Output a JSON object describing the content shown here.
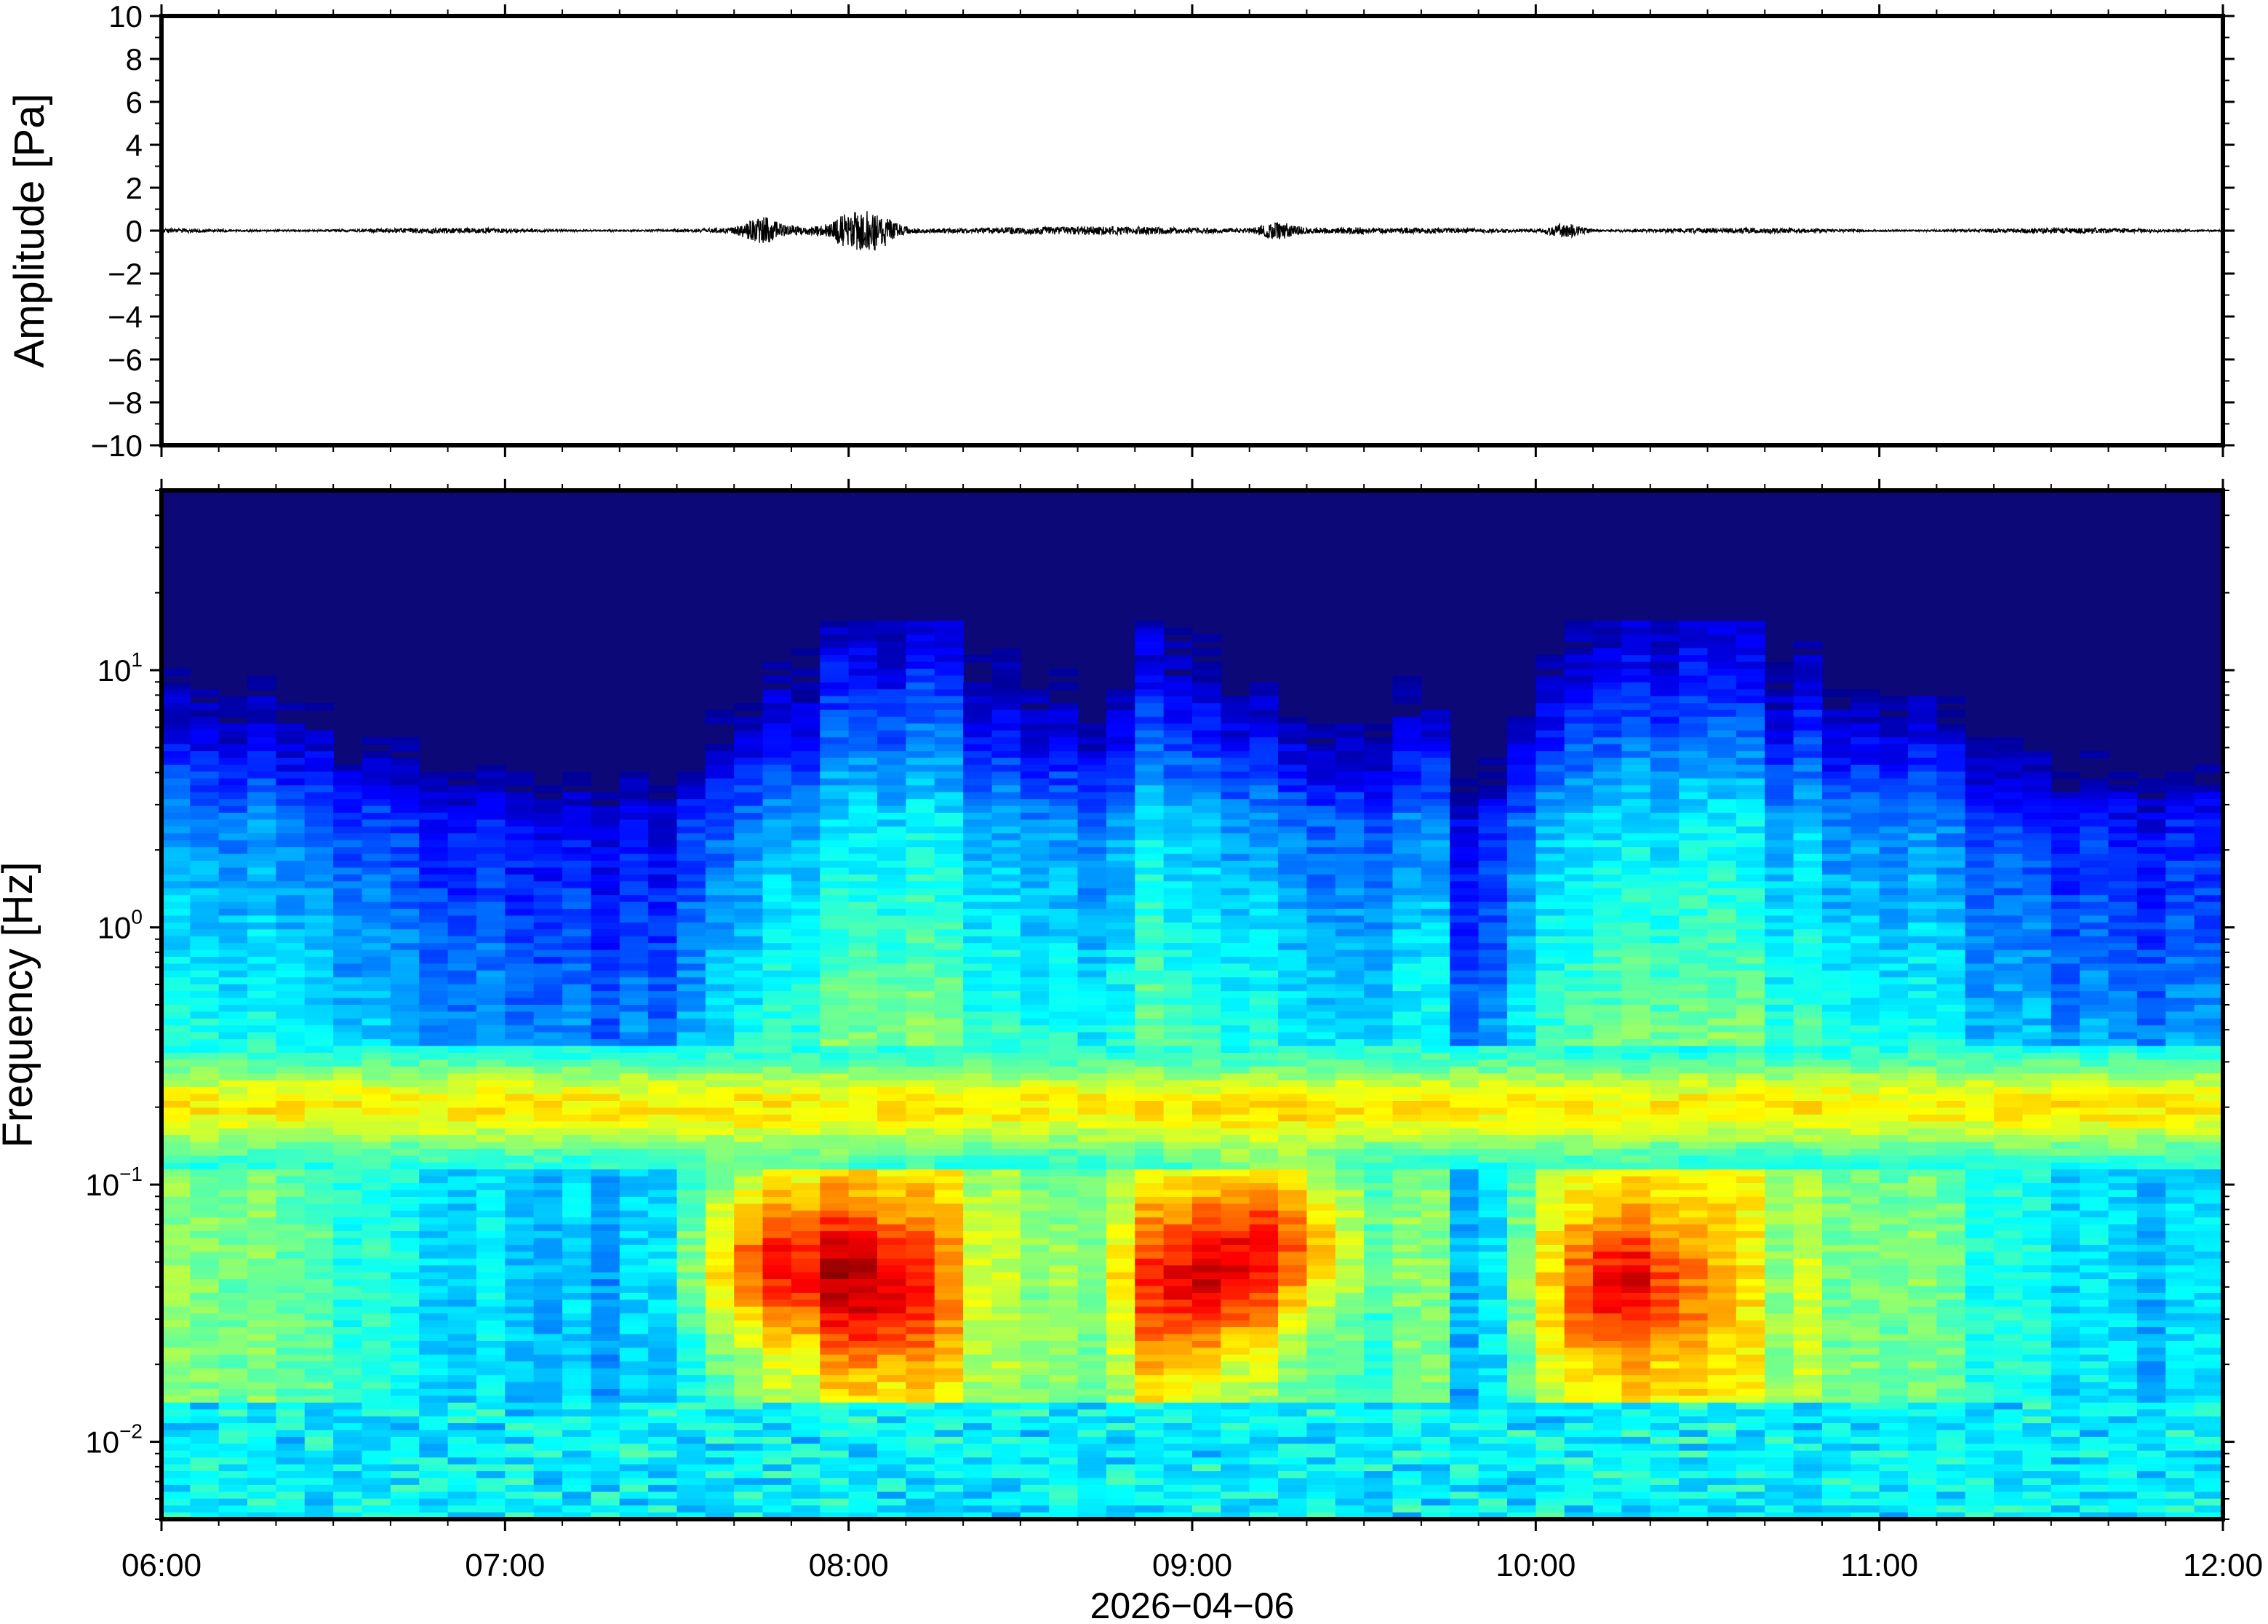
{
  "chart_data": [
    {
      "type": "line",
      "panel": "waveform",
      "ylabel": "Amplitude [Pa]",
      "ylim": [
        -10,
        10
      ],
      "yticks": [
        10,
        8,
        6,
        4,
        2,
        0,
        -2,
        -4,
        -6,
        -8,
        -10
      ],
      "ytick_labels": [
        "10",
        "8",
        "6",
        "4",
        "2",
        "0",
        "−2",
        "−4",
        "−6",
        "−8",
        "−10"
      ],
      "x_range": [
        "06:00",
        "12:00"
      ],
      "baseline": 0,
      "bursts": [
        {
          "time": "07:45",
          "amplitude": 0.5
        },
        {
          "time": "08:00",
          "amplitude": 0.6
        },
        {
          "time": "08:05",
          "amplitude": 0.7
        },
        {
          "time": "09:15",
          "amplitude": 0.3
        },
        {
          "time": "10:05",
          "amplitude": 0.3
        }
      ],
      "line_color": "#000000"
    },
    {
      "type": "heatmap",
      "panel": "spectrogram",
      "ylabel": "Frequency [Hz]",
      "yscale": "log",
      "ylim": [
        0.005,
        50
      ],
      "yticks": [
        10,
        1,
        0.1,
        0.01
      ],
      "ytick_labels": [
        {
          "base": "10",
          "exp": "1"
        },
        {
          "base": "10",
          "exp": "0"
        },
        {
          "base": "10",
          "exp": "−1"
        },
        {
          "base": "10",
          "exp": "−2"
        }
      ],
      "xlabel": "2026−04−06",
      "x_range": [
        "06:00",
        "12:00"
      ],
      "xtick_labels": [
        "06:00",
        "07:00",
        "08:00",
        "09:00",
        "10:00",
        "11:00",
        "12:00"
      ],
      "colormap": "jet",
      "background_color": "#0c0878",
      "energetic_periods": [
        {
          "time": "07:45",
          "freq_hz": 0.05
        },
        {
          "time": "08:05",
          "freq_hz": 0.04
        },
        {
          "time": "09:00",
          "freq_hz": 0.04
        },
        {
          "time": "09:15",
          "freq_hz": 0.06
        },
        {
          "time": "10:15",
          "freq_hz": 0.04
        }
      ]
    }
  ]
}
